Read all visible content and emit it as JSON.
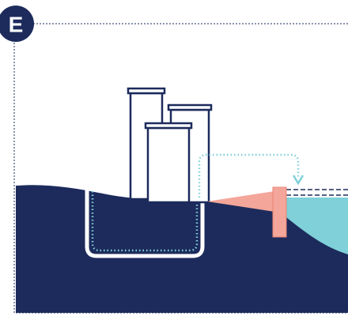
{
  "panel": {
    "label": "E"
  }
}
